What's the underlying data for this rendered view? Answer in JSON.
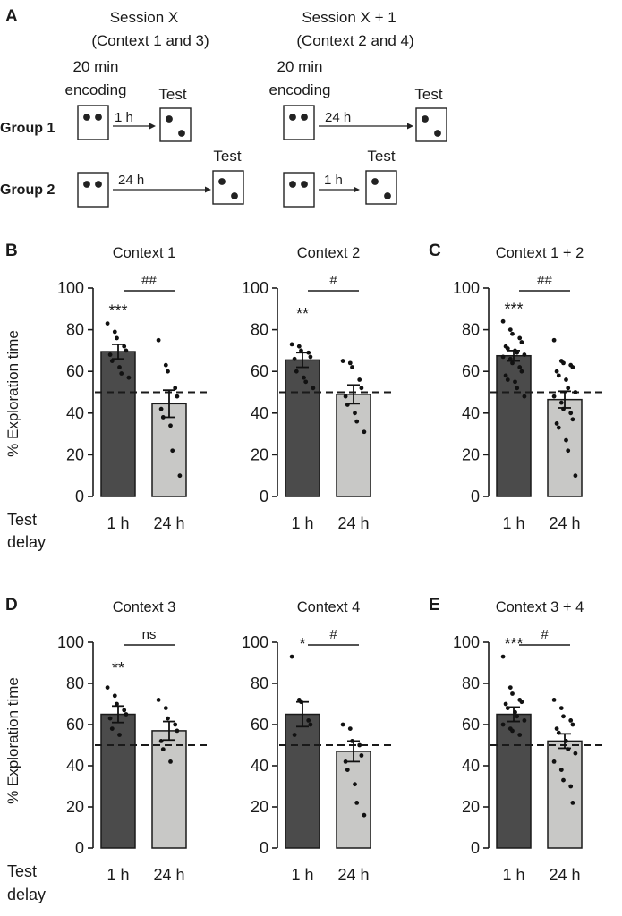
{
  "panel_a": {
    "letter": "A",
    "session_x": {
      "title": "Session X",
      "subtitle": "(Context 1 and 3)"
    },
    "session_x1": {
      "title": "Session X + 1",
      "subtitle": "(Context 2 and 4)"
    },
    "encoding_line1": "20 min",
    "encoding_line2": "encoding",
    "test_label": "Test",
    "group1": "Group 1",
    "group2": "Group 2",
    "delay_1h": "1 h",
    "delay_24h": "24 h"
  },
  "shared": {
    "ylabel": "% Exploration time",
    "xlabel_line1": "Test",
    "xlabel_line2": "delay",
    "chance": 50,
    "yticks": [
      "0",
      "20",
      "40",
      "60",
      "80",
      "100"
    ]
  },
  "chart_data": [
    {
      "letter": "B",
      "type": "bar",
      "title": "Context 1",
      "categories": [
        "1 h",
        "24 h"
      ],
      "values": [
        69.5,
        44.5
      ],
      "sem": [
        3.5,
        6.5
      ],
      "ylim": [
        0,
        100
      ],
      "bar_sig": [
        "***",
        ""
      ],
      "bracket": "##",
      "points": [
        [
          83,
          79,
          76,
          72,
          70,
          68,
          65,
          62,
          59,
          57
        ],
        [
          75,
          63,
          60,
          52,
          48,
          42,
          38,
          34,
          22,
          10
        ]
      ]
    },
    {
      "letter": "",
      "type": "bar",
      "title": "Context 2",
      "categories": [
        "1 h",
        "24 h"
      ],
      "values": [
        65.5,
        49
      ],
      "sem": [
        3.5,
        4.5
      ],
      "ylim": [
        0,
        100
      ],
      "bar_sig": [
        "**",
        ""
      ],
      "bracket": "#",
      "points": [
        [
          73,
          72,
          70,
          69,
          67,
          66,
          60,
          57,
          55,
          52
        ],
        [
          65,
          64,
          62,
          56,
          52,
          48,
          44,
          40,
          36,
          31
        ]
      ]
    },
    {
      "letter": "C",
      "type": "bar",
      "title": "Context 1 + 2",
      "categories": [
        "1 h",
        "24 h"
      ],
      "values": [
        67.5,
        46.5
      ],
      "sem": [
        2.5,
        4.0
      ],
      "ylim": [
        0,
        100
      ],
      "bar_sig": [
        "***",
        ""
      ],
      "bracket": "##",
      "points": [
        [
          84,
          80,
          78,
          76,
          74,
          72,
          71,
          70,
          69,
          68,
          67,
          66,
          64,
          62,
          60,
          58,
          56,
          55,
          52,
          48
        ],
        [
          75,
          65,
          64,
          63,
          62,
          60,
          58,
          56,
          52,
          50,
          48,
          45,
          42,
          40,
          37,
          35,
          33,
          27,
          22,
          10
        ]
      ]
    },
    {
      "letter": "D",
      "type": "bar",
      "title": "Context 3",
      "categories": [
        "1 h",
        "24 h"
      ],
      "values": [
        65,
        57
      ],
      "sem": [
        4.0,
        4.5
      ],
      "ylim": [
        0,
        100
      ],
      "bar_sig": [
        "**",
        ""
      ],
      "bracket": "ns",
      "points": [
        [
          78,
          74,
          70,
          67,
          65,
          63,
          58,
          55
        ],
        [
          72,
          68,
          63,
          60,
          57,
          52,
          48,
          42
        ]
      ]
    },
    {
      "letter": "",
      "type": "bar",
      "title": "Context 4",
      "categories": [
        "1 h",
        "24 h"
      ],
      "values": [
        65,
        47
      ],
      "sem": [
        6.0,
        5.0
      ],
      "ylim": [
        0,
        100
      ],
      "bar_sig": [
        "*",
        ""
      ],
      "bracket": "#",
      "points": [
        [
          93,
          72,
          71,
          62,
          60,
          55
        ],
        [
          60,
          58,
          52,
          50,
          45,
          42,
          38,
          31,
          22,
          16
        ]
      ]
    },
    {
      "letter": "E",
      "type": "bar",
      "title": "Context 3 + 4",
      "categories": [
        "1 h",
        "24 h"
      ],
      "values": [
        65,
        52
      ],
      "sem": [
        3.5,
        3.5
      ],
      "ylim": [
        0,
        100
      ],
      "bar_sig": [
        "***",
        ""
      ],
      "bracket": "#",
      "points": [
        [
          93,
          78,
          75,
          72,
          71,
          70,
          68,
          66,
          64,
          62,
          60,
          58,
          57,
          55
        ],
        [
          72,
          68,
          64,
          62,
          60,
          58,
          56,
          52,
          48,
          46,
          42,
          38,
          33,
          30,
          22
        ]
      ]
    }
  ]
}
